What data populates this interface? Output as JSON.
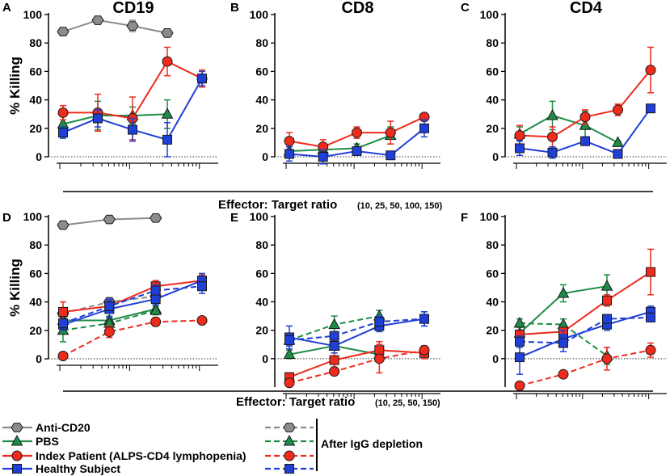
{
  "chart_data": {
    "type": "line",
    "panels": [
      {
        "letter": "A",
        "title": "CD19",
        "ylabel": "% Killing",
        "ylim": [
          0,
          100
        ],
        "yticks": [
          0,
          20,
          40,
          60,
          80,
          100
        ],
        "x": [
          10,
          25,
          50,
          100,
          150
        ],
        "series": [
          {
            "name": "Anti-CD20",
            "style": "solid",
            "marker": "hexagon",
            "color": "#8c8c8c",
            "x": [
              10,
              25,
              50,
              100
            ],
            "y": [
              88,
              96,
              92,
              87
            ],
            "err": [
              1.5,
              1.5,
              4,
              1.5
            ]
          },
          {
            "name": "PBS",
            "style": "solid",
            "marker": "triangle",
            "color": "#1e8c46",
            "x": [
              10,
              25,
              50,
              100
            ],
            "y": [
              23,
              29,
              29,
              30
            ],
            "err": [
              6,
              10,
              6,
              10
            ]
          },
          {
            "name": "Index Patient (ALPS-CD4 lymphopenia)",
            "style": "solid",
            "marker": "circle",
            "color": "#ee2b1c",
            "x": [
              10,
              25,
              50,
              100,
              150
            ],
            "y": [
              31,
              31,
              27,
              67,
              55
            ],
            "err": [
              5,
              13,
              15,
              10,
              6
            ]
          },
          {
            "name": "Healthy Subject",
            "style": "solid",
            "marker": "square",
            "color": "#1f3fd6",
            "x": [
              10,
              25,
              50,
              100,
              150
            ],
            "y": [
              17,
              27,
              19,
              12,
              55
            ],
            "err": [
              4,
              6,
              8,
              12,
              5
            ]
          }
        ]
      },
      {
        "letter": "B",
        "title": "CD8",
        "ylabel": "",
        "ylim": [
          0,
          100
        ],
        "yticks": [
          0,
          20,
          40,
          60,
          80,
          100
        ],
        "x": [
          10,
          25,
          50,
          100,
          150
        ],
        "series": [
          {
            "name": "PBS",
            "style": "solid",
            "marker": "triangle",
            "color": "#1e8c46",
            "x": [
              10,
              25,
              50,
              100
            ],
            "y": [
              4,
              5,
              6,
              15
            ],
            "err": [
              3,
              3,
              3,
              6
            ]
          },
          {
            "name": "Index Patient (ALPS-CD4 lymphopenia)",
            "style": "solid",
            "marker": "circle",
            "color": "#ee2b1c",
            "x": [
              10,
              25,
              50,
              100,
              150
            ],
            "y": [
              11,
              7,
              17,
              17,
              28
            ],
            "err": [
              6,
              5,
              4,
              8,
              2
            ]
          },
          {
            "name": "Healthy Subject",
            "style": "solid",
            "marker": "square",
            "color": "#1f3fd6",
            "x": [
              10,
              25,
              50,
              100,
              150
            ],
            "y": [
              2,
              0,
              4,
              1,
              20
            ],
            "err": [
              5,
              5,
              3,
              1,
              6
            ]
          }
        ]
      },
      {
        "letter": "C",
        "title": "CD4",
        "ylabel": "",
        "ylim": [
          0,
          100
        ],
        "yticks": [
          0,
          20,
          40,
          60,
          80,
          100
        ],
        "x": [
          10,
          25,
          50,
          100,
          150
        ],
        "series": [
          {
            "name": "PBS",
            "style": "solid",
            "marker": "triangle",
            "color": "#1e8c46",
            "x": [
              10,
              25,
              50,
              100
            ],
            "y": [
              16,
              29,
              22,
              10
            ],
            "err": [
              5,
              10,
              10,
              1
            ]
          },
          {
            "name": "Index Patient (ALPS-CD4 lymphopenia)",
            "style": "solid",
            "marker": "circle",
            "color": "#ee2b1c",
            "x": [
              10,
              25,
              50,
              100,
              150
            ],
            "y": [
              15,
              14,
              28,
              33,
              61
            ],
            "err": [
              7,
              7,
              5,
              4,
              16
            ]
          },
          {
            "name": "Healthy Subject",
            "style": "solid",
            "marker": "square",
            "color": "#1f3fd6",
            "x": [
              10,
              25,
              50,
              100,
              150
            ],
            "y": [
              6,
              3,
              11,
              2,
              34
            ],
            "err": [
              5,
              4,
              3,
              2,
              1
            ]
          }
        ]
      },
      {
        "letter": "D",
        "title": "",
        "ylabel": "% Killing",
        "ylim": [
          0,
          100
        ],
        "yticks": [
          0,
          20,
          40,
          60,
          80,
          100
        ],
        "x": [
          10,
          25,
          50,
          150
        ],
        "series": [
          {
            "name": "Anti-CD20",
            "style": "solid",
            "marker": "hexagon",
            "color": "#8c8c8c",
            "x": [
              10,
              25,
              50
            ],
            "y": [
              94,
              98,
              99
            ],
            "err": [
              1,
              1,
              1
            ]
          },
          {
            "name": "Anti-CD20 after IgG depletion",
            "style": "dashed",
            "marker": "hexagon",
            "color": "#8c8c8c",
            "x": [
              10,
              25,
              50
            ],
            "y": [
              32,
              40,
              44
            ],
            "err": [
              3,
              3,
              3
            ]
          },
          {
            "name": "PBS",
            "style": "solid",
            "marker": "triangle",
            "color": "#1e8c46",
            "x": [
              10,
              25,
              50
            ],
            "y": [
              27,
              27,
              35
            ],
            "err": [
              4,
              3,
              4
            ]
          },
          {
            "name": "PBS after IgG depletion",
            "style": "dashed",
            "marker": "triangle",
            "color": "#1e8c46",
            "x": [
              10,
              25,
              50
            ],
            "y": [
              20,
              25,
              34
            ],
            "err": [
              8,
              4,
              3
            ]
          },
          {
            "name": "Index Patient (ALPS-CD4 lymphopenia)",
            "style": "solid",
            "marker": "square",
            "color": "#ee2b1c",
            "x": [
              10,
              25,
              50,
              150
            ],
            "y": [
              33,
              37,
              51,
              55
            ],
            "err": [
              7,
              4,
              4,
              4
            ]
          },
          {
            "name": "Index Patient after IgG depletion",
            "style": "dashed",
            "marker": "circle",
            "color": "#ee2b1c",
            "x": [
              10,
              25,
              50,
              150
            ],
            "y": [
              2,
              19,
              26,
              27
            ],
            "err": [
              1,
              4,
              3,
              2
            ]
          },
          {
            "name": "Healthy Subject",
            "style": "solid",
            "marker": "square",
            "color": "#1f3fd6",
            "x": [
              10,
              25,
              50,
              150
            ],
            "y": [
              24,
              35,
              42,
              55
            ],
            "err": [
              4,
              6,
              4,
              5
            ]
          },
          {
            "name": "Healthy Subject after IgG depletion",
            "style": "dashed",
            "marker": "square",
            "color": "#1f3fd6",
            "x": [
              10,
              25,
              50,
              150
            ],
            "y": [
              25,
              37,
              48,
              51
            ],
            "err": [
              3,
              5,
              4,
              5
            ]
          }
        ]
      },
      {
        "letter": "E",
        "title": "",
        "ylabel": "",
        "ylim": [
          -20,
          100
        ],
        "yticks": [
          0,
          20,
          40,
          60,
          80,
          100
        ],
        "x": [
          10,
          25,
          50,
          150
        ],
        "series": [
          {
            "name": "PBS",
            "style": "solid",
            "marker": "triangle",
            "color": "#1e8c46",
            "x": [
              10,
              25,
              50
            ],
            "y": [
              3,
              9,
              3
            ],
            "err": [
              3,
              3,
              3
            ]
          },
          {
            "name": "PBS after IgG depletion",
            "style": "dashed",
            "marker": "triangle",
            "color": "#1e8c46",
            "x": [
              10,
              25,
              50
            ],
            "y": [
              13,
              24,
              30
            ],
            "err": [
              4,
              6,
              4
            ]
          },
          {
            "name": "Index Patient (ALPS-CD4 lymphopenia)",
            "style": "solid",
            "marker": "square",
            "color": "#ee2b1c",
            "x": [
              10,
              25,
              50,
              150
            ],
            "y": [
              -13,
              -1,
              6,
              4
            ],
            "err": [
              3,
              5,
              6,
              4
            ]
          },
          {
            "name": "Index Patient after IgG depletion",
            "style": "dashed",
            "marker": "circle",
            "color": "#ee2b1c",
            "x": [
              10,
              25,
              50,
              150
            ],
            "y": [
              -17,
              -9,
              0,
              6
            ],
            "err": [
              2,
              2,
              10,
              3
            ]
          },
          {
            "name": "Healthy Subject",
            "style": "solid",
            "marker": "square",
            "color": "#1f3fd6",
            "x": [
              10,
              25,
              50,
              150
            ],
            "y": [
              15,
              9,
              23,
              28
            ],
            "err": [
              8,
              5,
              4,
              5
            ]
          },
          {
            "name": "Healthy Subject after IgG depletion",
            "style": "dashed",
            "marker": "square",
            "color": "#1f3fd6",
            "x": [
              10,
              25,
              50,
              150
            ],
            "y": [
              13,
              16,
              26,
              28
            ],
            "err": [
              4,
              3,
              4,
              5
            ]
          }
        ]
      },
      {
        "letter": "F",
        "title": "",
        "ylabel": "",
        "ylim": [
          -20,
          100
        ],
        "yticks": [
          0,
          20,
          40,
          60,
          80,
          100
        ],
        "x": [
          10,
          25,
          50,
          150
        ],
        "series": [
          {
            "name": "PBS",
            "style": "solid",
            "marker": "triangle",
            "color": "#1e8c46",
            "x": [
              10,
              25,
              50
            ],
            "y": [
              18,
              46,
              51
            ],
            "err": [
              5,
              6,
              8
            ]
          },
          {
            "name": "PBS after IgG depletion",
            "style": "dashed",
            "marker": "triangle",
            "color": "#1e8c46",
            "x": [
              10,
              25,
              50
            ],
            "y": [
              25,
              24,
              2
            ],
            "err": [
              3,
              4,
              6
            ]
          },
          {
            "name": "Index Patient (ALPS-CD4 lymphopenia)",
            "style": "solid",
            "marker": "square",
            "color": "#ee2b1c",
            "x": [
              10,
              25,
              50,
              150
            ],
            "y": [
              17,
              19,
              41,
              61
            ],
            "err": [
              3,
              3,
              4,
              16
            ]
          },
          {
            "name": "Index Patient after IgG depletion",
            "style": "dashed",
            "marker": "circle",
            "color": "#ee2b1c",
            "x": [
              10,
              25,
              50,
              150
            ],
            "y": [
              -19,
              -11,
              0,
              6
            ],
            "err": [
              1,
              1,
              8,
              5
            ]
          },
          {
            "name": "Healthy Subject",
            "style": "solid",
            "marker": "square",
            "color": "#1f3fd6",
            "x": [
              10,
              25,
              50,
              150
            ],
            "y": [
              1,
              14,
              24,
              33
            ],
            "err": [
              12,
              6,
              4,
              4
            ]
          },
          {
            "name": "Healthy Subject after IgG depletion",
            "style": "dashed",
            "marker": "square",
            "color": "#1f3fd6",
            "x": [
              10,
              25,
              50,
              150
            ],
            "y": [
              12,
              11,
              28,
              29
            ],
            "err": [
              4,
              6,
              3,
              3
            ]
          }
        ]
      }
    ],
    "xlabel_top": {
      "main": "Effector: Target ratio",
      "detail": "(10, 25, 50, 100, 150)"
    },
    "xlabel_bottom": {
      "main": "Effector: Target ratio",
      "detail": "(10, 25, 50, 150)"
    },
    "legend": {
      "entries": [
        {
          "label": "Anti-CD20",
          "marker": "hexagon",
          "color": "#8c8c8c"
        },
        {
          "label": "PBS",
          "marker": "triangle",
          "color": "#1e8c46"
        },
        {
          "label": "Index Patient (ALPS-CD4 lymphopenia)",
          "marker": "circle",
          "color": "#ee2b1c"
        },
        {
          "label": "Healthy Subject",
          "marker": "square",
          "color": "#1f3fd6"
        }
      ],
      "dashed_label": "After IgG depletion"
    }
  }
}
